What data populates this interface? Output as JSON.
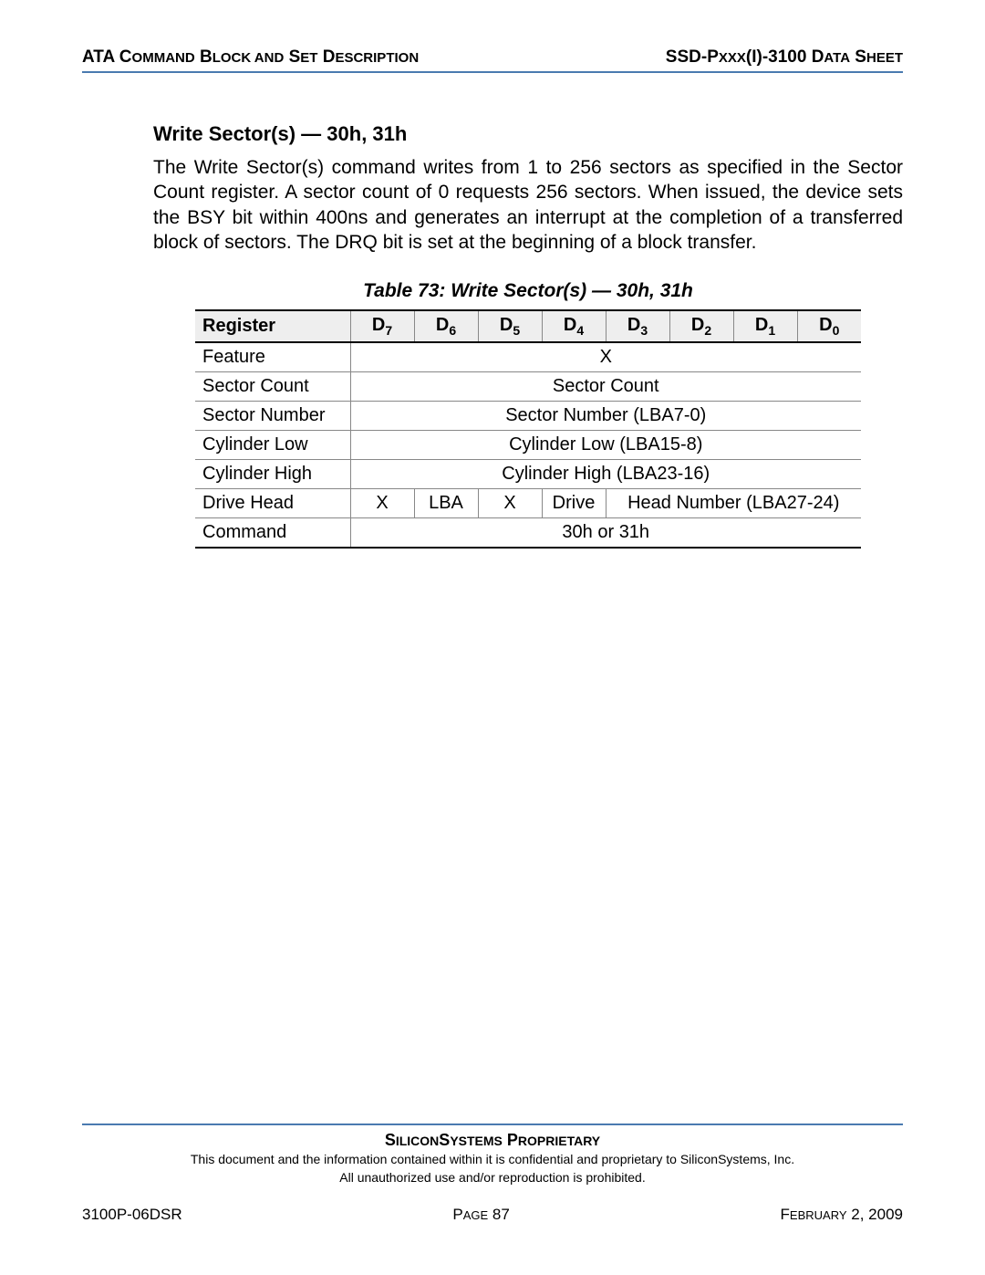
{
  "header": {
    "left_html": "ATA C<span class='scsmall'>OMMAND</span> B<span class='scsmall'>LOCK AND</span> S<span class='scsmall'>ET</span> D<span class='scsmall'>ESCRIPTION</span>",
    "left": "ATA COMMAND BLOCK AND SET DESCRIPTION",
    "right": "SSD-Pxxx(I)-3100 DATA SHEET"
  },
  "section": {
    "heading": "Write Sector(s) — 30h, 31h",
    "paragraph": "The Write Sector(s) command writes from 1 to 256 sectors as specified in the Sector Count register. A sector count of 0 requests 256 sectors. When issued, the device sets the BSY bit within 400ns and generates an interrupt at the completion of a transferred block of sectors. The DRQ bit is set at the beginning of a block transfer."
  },
  "table": {
    "caption": "Table 73:  Write Sector(s) — 30h, 31h",
    "header_register": "Register",
    "d_labels": [
      "7",
      "6",
      "5",
      "4",
      "3",
      "2",
      "1",
      "0"
    ],
    "rows": [
      {
        "name": "Feature",
        "span8": "X"
      },
      {
        "name": "Sector Count",
        "span8": "Sector Count"
      },
      {
        "name": "Sector Number",
        "span8": "Sector Number (LBA7-0)"
      },
      {
        "name": "Cylinder Low",
        "span8": "Cylinder Low (LBA15-8)"
      },
      {
        "name": "Cylinder High",
        "span8": "Cylinder High (LBA23-16)"
      },
      {
        "name": "Drive Head",
        "cells": [
          "X",
          "LBA",
          "X",
          "Drive"
        ],
        "tail_span4": "Head Number (LBA27-24)"
      },
      {
        "name": "Command",
        "span8": "30h or 31h"
      }
    ]
  },
  "footer": {
    "proprietary": "SILICONSYSTEMS PROPRIETARY",
    "conf1": "This document and the information contained within it is confidential and proprietary to SiliconSystems, Inc.",
    "conf2": "All unauthorized use and/or reproduction is prohibited.",
    "doc_id": "3100P-06DSR",
    "page": "PAGE 87",
    "date": "FEBRUARY 2, 2009"
  },
  "colors": {
    "rule": "#4a7ab0",
    "header_bg": "#eeeeee",
    "border_dark": "#000000",
    "border_light": "#888888",
    "text": "#000000",
    "page_bg": "#ffffff"
  }
}
